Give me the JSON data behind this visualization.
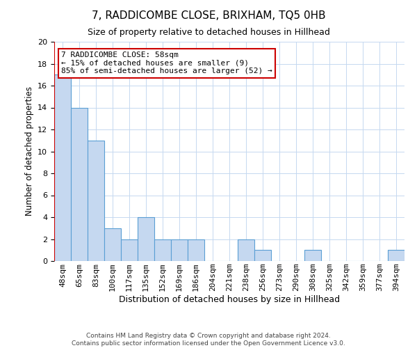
{
  "title": "7, RADDICOMBE CLOSE, BRIXHAM, TQ5 0HB",
  "subtitle": "Size of property relative to detached houses in Hillhead",
  "xlabel": "Distribution of detached houses by size in Hillhead",
  "ylabel": "Number of detached properties",
  "categories": [
    "48sqm",
    "65sqm",
    "83sqm",
    "100sqm",
    "117sqm",
    "135sqm",
    "152sqm",
    "169sqm",
    "186sqm",
    "204sqm",
    "221sqm",
    "238sqm",
    "256sqm",
    "273sqm",
    "290sqm",
    "308sqm",
    "325sqm",
    "342sqm",
    "359sqm",
    "377sqm",
    "394sqm"
  ],
  "values": [
    17,
    14,
    11,
    3,
    2,
    4,
    2,
    2,
    2,
    0,
    0,
    2,
    1,
    0,
    0,
    1,
    0,
    0,
    0,
    0,
    1
  ],
  "bar_color": "#c5d8f0",
  "bar_edge_color": "#5a9fd4",
  "vline_color": "#cc0000",
  "annotation_title": "7 RADDICOMBE CLOSE: 58sqm",
  "annotation_line1": "← 15% of detached houses are smaller (9)",
  "annotation_line2": "85% of semi-detached houses are larger (52) →",
  "annotation_box_color": "#ffffff",
  "annotation_box_edge": "#cc0000",
  "ylim": [
    0,
    20
  ],
  "yticks": [
    0,
    2,
    4,
    6,
    8,
    10,
    12,
    14,
    16,
    18,
    20
  ],
  "footer1": "Contains HM Land Registry data © Crown copyright and database right 2024.",
  "footer2": "Contains public sector information licensed under the Open Government Licence v3.0.",
  "background_color": "#ffffff",
  "grid_color": "#c5d8f0",
  "title_fontsize": 11,
  "subtitle_fontsize": 9,
  "xlabel_fontsize": 9,
  "ylabel_fontsize": 8.5,
  "tick_fontsize": 8,
  "annotation_fontsize": 8,
  "footer_fontsize": 6.5
}
